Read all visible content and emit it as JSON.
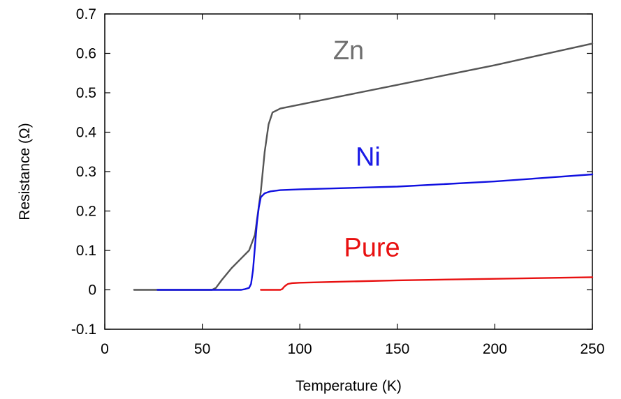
{
  "chart_data": {
    "type": "line",
    "title": "",
    "xlabel": "Temperature (K)",
    "ylabel": "Resistance (Ω)",
    "xlim": [
      0,
      250
    ],
    "ylim": [
      -0.1,
      0.7
    ],
    "xticks": [
      0,
      50,
      100,
      150,
      200,
      250
    ],
    "yticks": [
      -0.1,
      0,
      0.1,
      0.2,
      0.3,
      0.4,
      0.5,
      0.6,
      0.7
    ],
    "xtick_labels": [
      "0",
      "50",
      "100",
      "150",
      "200",
      "250"
    ],
    "ytick_labels": [
      "-0.1",
      "0",
      "0.1",
      "0.2",
      "0.3",
      "0.4",
      "0.5",
      "0.6",
      "0.7"
    ],
    "grid": false,
    "legend": "none",
    "series": [
      {
        "name": "Zn",
        "color": "#555555",
        "label_color": "#707070",
        "label_at": [
          125,
          0.585
        ],
        "x": [
          15,
          25,
          40,
          55,
          57,
          60,
          65,
          70,
          74,
          77,
          80,
          82,
          84,
          86,
          88,
          90,
          100,
          120,
          150,
          200,
          250
        ],
        "y": [
          0,
          0,
          0,
          0,
          0.005,
          0.025,
          0.055,
          0.08,
          0.1,
          0.14,
          0.25,
          0.35,
          0.42,
          0.45,
          0.455,
          0.46,
          0.47,
          0.49,
          0.52,
          0.57,
          0.625
        ]
      },
      {
        "name": "Ni",
        "color": "#1010e0",
        "label_color": "#1a1ae6",
        "label_at": [
          135,
          0.315
        ],
        "x": [
          27,
          40,
          60,
          70,
          72,
          74,
          75,
          76,
          77,
          78,
          79,
          80,
          82,
          85,
          90,
          100,
          150,
          200,
          250
        ],
        "y": [
          0,
          0,
          0,
          0,
          0.002,
          0.005,
          0.015,
          0.05,
          0.11,
          0.17,
          0.21,
          0.235,
          0.245,
          0.25,
          0.253,
          0.255,
          0.262,
          0.275,
          0.293
        ]
      },
      {
        "name": "Pure",
        "color": "#e81010",
        "label_color": "#e81010",
        "label_at": [
          137,
          0.085
        ],
        "x": [
          80,
          90,
          91,
          92,
          93,
          94,
          96,
          100,
          150,
          200,
          250
        ],
        "y": [
          0,
          0,
          0.002,
          0.008,
          0.012,
          0.015,
          0.017,
          0.018,
          0.024,
          0.028,
          0.032
        ]
      }
    ]
  }
}
